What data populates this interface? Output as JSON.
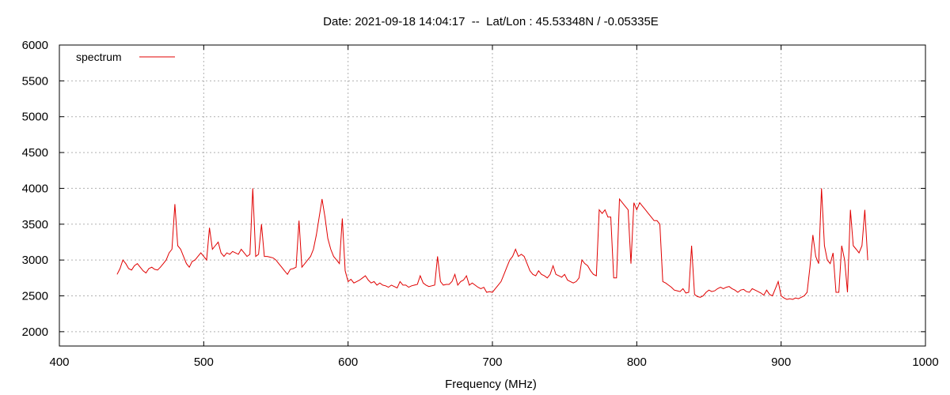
{
  "chart_data": {
    "type": "line",
    "title": "Date: 2021-09-18 14:04:17  --  Lat/Lon : 45.53348N / -0.05335E",
    "xlabel": "Frequency (MHz)",
    "ylabel": "",
    "xlim": [
      400,
      1000
    ],
    "ylim": [
      1800,
      6000
    ],
    "x_ticks": [
      400,
      500,
      600,
      700,
      800,
      900,
      1000
    ],
    "y_ticks": [
      2000,
      2500,
      3000,
      3500,
      4000,
      4500,
      5000,
      5500,
      6000
    ],
    "grid": true,
    "legend": "top-left",
    "colors": {
      "series": "#e00000",
      "grid": "#b0b0b0",
      "axis": "#000000"
    },
    "series": [
      {
        "name": "spectrum",
        "x": [
          440,
          442,
          444,
          446,
          448,
          450,
          452,
          454,
          456,
          458,
          460,
          462,
          464,
          466,
          468,
          470,
          472,
          474,
          476,
          478,
          480,
          482,
          484,
          486,
          488,
          490,
          492,
          494,
          496,
          498,
          500,
          502,
          504,
          506,
          508,
          510,
          512,
          514,
          516,
          518,
          520,
          522,
          524,
          526,
          528,
          530,
          532,
          534,
          536,
          538,
          540,
          542,
          544,
          546,
          548,
          550,
          552,
          554,
          556,
          558,
          560,
          562,
          564,
          566,
          568,
          570,
          572,
          574,
          576,
          578,
          580,
          582,
          584,
          586,
          588,
          590,
          592,
          594,
          596,
          598,
          600,
          602,
          604,
          606,
          608,
          610,
          612,
          614,
          616,
          618,
          620,
          622,
          624,
          626,
          628,
          630,
          632,
          634,
          636,
          638,
          640,
          642,
          644,
          646,
          648,
          650,
          652,
          654,
          656,
          658,
          660,
          662,
          664,
          666,
          668,
          670,
          672,
          674,
          676,
          678,
          680,
          682,
          684,
          686,
          688,
          690,
          692,
          694,
          696,
          698,
          700,
          702,
          704,
          706,
          708,
          710,
          712,
          714,
          716,
          718,
          720,
          722,
          724,
          726,
          728,
          730,
          732,
          734,
          736,
          738,
          740,
          742,
          744,
          746,
          748,
          750,
          752,
          754,
          756,
          758,
          760,
          762,
          764,
          766,
          768,
          770,
          772,
          774,
          776,
          778,
          780,
          782,
          784,
          786,
          788,
          790,
          792,
          794,
          796,
          798,
          800,
          802,
          804,
          806,
          808,
          810,
          812,
          814,
          816,
          818,
          820,
          822,
          824,
          826,
          828,
          830,
          832,
          834,
          836,
          838,
          840,
          842,
          844,
          846,
          848,
          850,
          852,
          854,
          856,
          858,
          860,
          862,
          864,
          866,
          868,
          870,
          872,
          874,
          876,
          878,
          880,
          882,
          884,
          886,
          888,
          890,
          892,
          894,
          896,
          898,
          900,
          902,
          904,
          906,
          908,
          910,
          912,
          914,
          916,
          918,
          920,
          922,
          924,
          926,
          928,
          930,
          932,
          934,
          936,
          938,
          940,
          942,
          944,
          946,
          948,
          950,
          952,
          954,
          956,
          958,
          960
        ],
        "y": [
          2800,
          2880,
          3000,
          2950,
          2880,
          2860,
          2920,
          2950,
          2900,
          2850,
          2820,
          2880,
          2900,
          2870,
          2860,
          2900,
          2950,
          3000,
          3100,
          3150,
          3780,
          3200,
          3150,
          3050,
          2950,
          2900,
          2980,
          3000,
          3050,
          3100,
          3050,
          3000,
          3450,
          3150,
          3200,
          3250,
          3100,
          3050,
          3100,
          3080,
          3120,
          3100,
          3080,
          3150,
          3100,
          3050,
          3080,
          4000,
          3050,
          3080,
          3500,
          3050,
          3050,
          3040,
          3030,
          3000,
          2950,
          2900,
          2850,
          2800,
          2870,
          2880,
          2900,
          3550,
          2900,
          2950,
          3000,
          3050,
          3150,
          3350,
          3600,
          3850,
          3600,
          3300,
          3150,
          3050,
          3000,
          2950,
          3580,
          2850,
          2700,
          2730,
          2680,
          2700,
          2720,
          2750,
          2780,
          2720,
          2680,
          2700,
          2650,
          2680,
          2650,
          2640,
          2620,
          2650,
          2630,
          2610,
          2700,
          2650,
          2650,
          2620,
          2640,
          2650,
          2660,
          2780,
          2680,
          2650,
          2630,
          2640,
          2650,
          3050,
          2700,
          2650,
          2660,
          2660,
          2700,
          2800,
          2650,
          2700,
          2720,
          2780,
          2650,
          2680,
          2650,
          2620,
          2600,
          2620,
          2550,
          2560,
          2550,
          2600,
          2650,
          2700,
          2800,
          2900,
          3000,
          3050,
          3150,
          3050,
          3080,
          3050,
          2950,
          2850,
          2800,
          2780,
          2850,
          2800,
          2780,
          2750,
          2800,
          2920,
          2800,
          2780,
          2760,
          2800,
          2720,
          2700,
          2680,
          2700,
          2750,
          3000,
          2950,
          2920,
          2850,
          2800,
          2780,
          3700,
          3650,
          3700,
          3600,
          3600,
          2750,
          2750,
          3850,
          3800,
          3750,
          3700,
          2950,
          3800,
          3700,
          3800,
          3750,
          3700,
          3650,
          3600,
          3550,
          3550,
          3500,
          2700,
          2680,
          2650,
          2620,
          2580,
          2570,
          2560,
          2600,
          2540,
          2550,
          3200,
          2520,
          2490,
          2480,
          2500,
          2550,
          2580,
          2560,
          2570,
          2600,
          2620,
          2600,
          2620,
          2630,
          2600,
          2580,
          2550,
          2580,
          2590,
          2560,
          2550,
          2600,
          2580,
          2560,
          2540,
          2510,
          2580,
          2520,
          2500,
          2600,
          2700,
          2500,
          2470,
          2450,
          2460,
          2450,
          2470,
          2460,
          2480,
          2500,
          2550,
          2900,
          3350,
          3050,
          2950,
          4000,
          3200,
          3000,
          2950,
          3100,
          2550,
          2550,
          3200,
          3000,
          2550,
          3700,
          3200,
          3150,
          3100,
          3200,
          3700,
          3000
        ]
      }
    ]
  }
}
